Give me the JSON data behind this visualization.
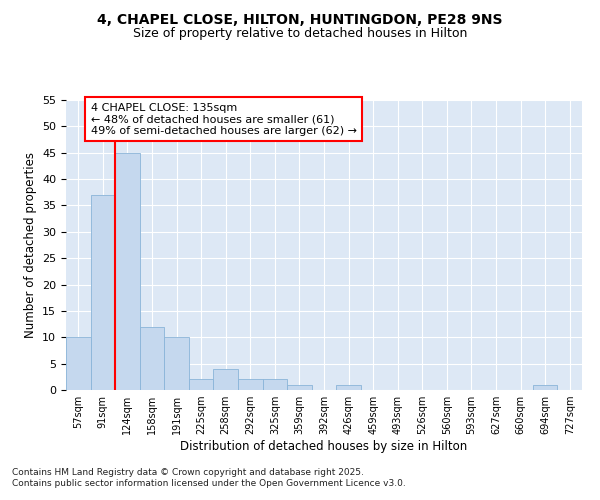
{
  "title_line1": "4, CHAPEL CLOSE, HILTON, HUNTINGDON, PE28 9NS",
  "title_line2": "Size of property relative to detached houses in Hilton",
  "xlabel": "Distribution of detached houses by size in Hilton",
  "ylabel": "Number of detached properties",
  "categories": [
    "57sqm",
    "91sqm",
    "124sqm",
    "158sqm",
    "191sqm",
    "225sqm",
    "258sqm",
    "292sqm",
    "325sqm",
    "359sqm",
    "392sqm",
    "426sqm",
    "459sqm",
    "493sqm",
    "526sqm",
    "560sqm",
    "593sqm",
    "627sqm",
    "660sqm",
    "694sqm",
    "727sqm"
  ],
  "values": [
    10,
    37,
    45,
    12,
    10,
    2,
    4,
    2,
    2,
    1,
    0,
    1,
    0,
    0,
    0,
    0,
    0,
    0,
    0,
    1,
    0
  ],
  "bar_color": "#c5d8ee",
  "bar_edge_color": "#8ab4d8",
  "vline_x": 2.0,
  "vline_color": "red",
  "annotation_text": "4 CHAPEL CLOSE: 135sqm\n← 48% of detached houses are smaller (61)\n49% of semi-detached houses are larger (62) →",
  "annotation_box_color": "white",
  "annotation_box_edge": "red",
  "ylim": [
    0,
    55
  ],
  "yticks": [
    0,
    5,
    10,
    15,
    20,
    25,
    30,
    35,
    40,
    45,
    50,
    55
  ],
  "bg_color": "#dde8f5",
  "footer_line1": "Contains HM Land Registry data © Crown copyright and database right 2025.",
  "footer_line2": "Contains public sector information licensed under the Open Government Licence v3.0.",
  "title_fontsize": 10,
  "subtitle_fontsize": 9,
  "tick_fontsize": 7,
  "label_fontsize": 8.5,
  "annotation_fontsize": 8
}
